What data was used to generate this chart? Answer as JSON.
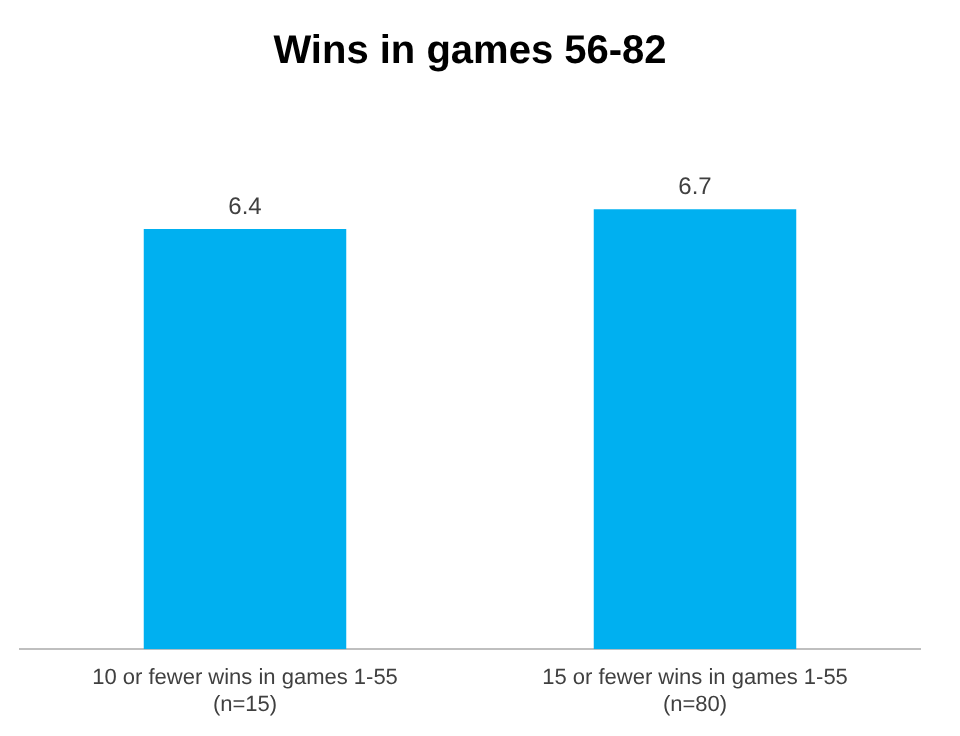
{
  "chart_data": {
    "type": "bar",
    "title": "Wins in games 56-82",
    "categories": [
      "10 or fewer wins in games 1-55\n(n=15)",
      "15 or fewer wins in games 1-55\n(n=80)"
    ],
    "values": [
      6.4,
      6.7
    ],
    "color": "#00b0f0",
    "data_labels": true,
    "grid": false,
    "legend": false
  }
}
